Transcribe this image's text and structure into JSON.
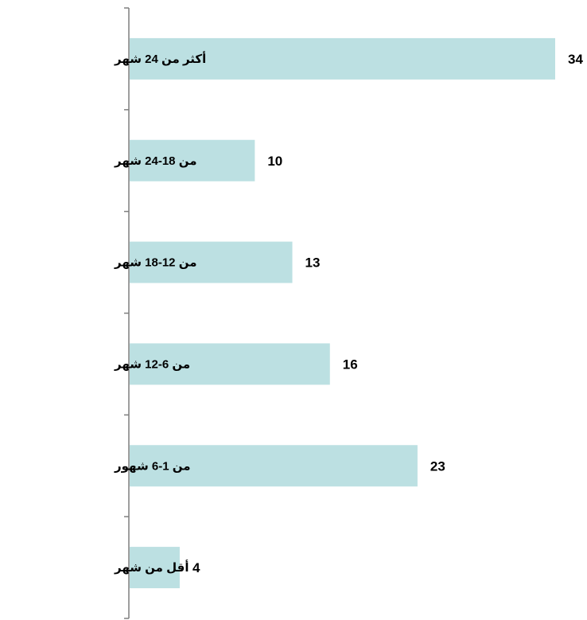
{
  "chart_data": {
    "type": "bar",
    "orientation": "horizontal",
    "categories": [
      "أكثر من 24 شهر",
      "من 18-24 شهر",
      "من 12-18 شهر",
      "من 6-12 شهر",
      "من 1-6 شهور",
      "أقل من شهر"
    ],
    "values": [
      34,
      10,
      13,
      16,
      23,
      4
    ],
    "data_labels": [
      "34",
      "10",
      "13",
      "16",
      "23",
      "4"
    ],
    "title": "",
    "xlabel": "",
    "ylabel": "",
    "xlim": [
      0,
      34
    ],
    "grid": false,
    "legend": "none",
    "bar_color": "#bce0e2",
    "axis_color": "#7f7f7f"
  }
}
